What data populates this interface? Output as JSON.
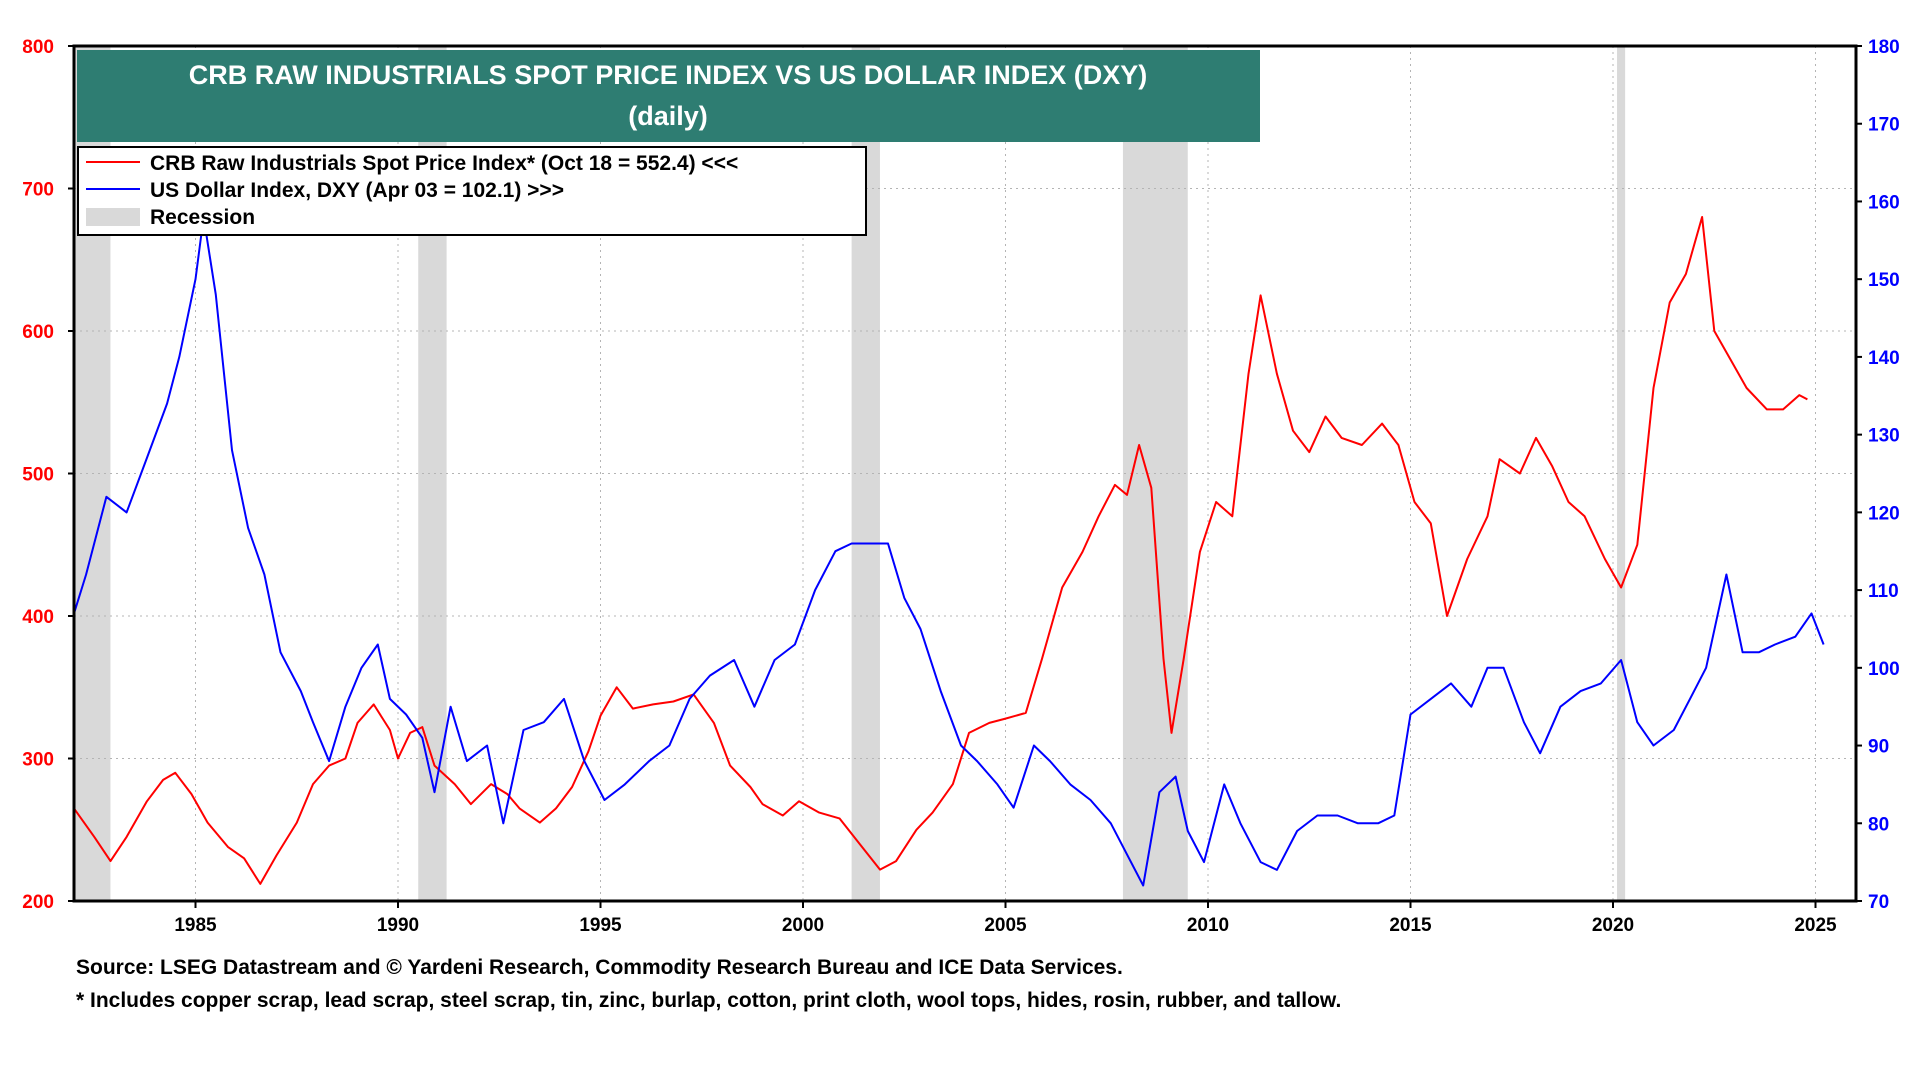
{
  "chart_data": {
    "type": "line",
    "title": "CRB RAW INDUSTRIALS SPOT PRICE INDEX VS US DOLLAR INDEX (DXY)",
    "subtitle": "(daily)",
    "x_range": [
      1982.0,
      2026.0
    ],
    "x_ticks": [
      "1985",
      "1990",
      "1995",
      "2000",
      "2005",
      "2010",
      "2015",
      "2020",
      "2025"
    ],
    "y_left": {
      "range": [
        200,
        800
      ],
      "ticks": [
        "800",
        "700",
        "600",
        "500",
        "400",
        "300",
        "200"
      ],
      "color": "#ff0000"
    },
    "y_right": {
      "range": [
        70,
        180
      ],
      "ticks": [
        "180",
        "170",
        "160",
        "150",
        "140",
        "130",
        "120",
        "110",
        "100",
        "90",
        "80",
        "70"
      ],
      "color": "#0000ff"
    },
    "grid": true,
    "legend": {
      "placement": "top-left",
      "entries": [
        {
          "label": "CRB Raw Industrials Spot Price Index* (Oct 18 = 552.4) <<<",
          "color": "#ff0000",
          "kind": "line"
        },
        {
          "label": "US Dollar Index, DXY (Apr 03 = 102.1) >>>",
          "color": "#0000ff",
          "kind": "line"
        },
        {
          "label": "Recession",
          "color": "#d9d9d9",
          "kind": "box"
        }
      ]
    },
    "recessions": [
      [
        1982.0,
        1982.9
      ],
      [
        1990.5,
        1991.2
      ],
      [
        2001.2,
        2001.9
      ],
      [
        2007.9,
        2009.5
      ],
      [
        2020.1,
        2020.3
      ]
    ],
    "series": [
      {
        "name": "CRB Raw Industrials Spot Price Index",
        "axis": "left",
        "color": "#ff0000",
        "points": [
          [
            1982.0,
            265
          ],
          [
            1982.5,
            245
          ],
          [
            1982.9,
            228
          ],
          [
            1983.3,
            245
          ],
          [
            1983.8,
            270
          ],
          [
            1984.2,
            285
          ],
          [
            1984.5,
            290
          ],
          [
            1984.9,
            275
          ],
          [
            1985.3,
            255
          ],
          [
            1985.8,
            238
          ],
          [
            1986.2,
            230
          ],
          [
            1986.6,
            212
          ],
          [
            1987.0,
            232
          ],
          [
            1987.5,
            255
          ],
          [
            1987.9,
            282
          ],
          [
            1988.3,
            295
          ],
          [
            1988.7,
            300
          ],
          [
            1989.0,
            325
          ],
          [
            1989.4,
            338
          ],
          [
            1989.8,
            320
          ],
          [
            1990.0,
            300
          ],
          [
            1990.3,
            318
          ],
          [
            1990.6,
            322
          ],
          [
            1990.9,
            295
          ],
          [
            1991.4,
            282
          ],
          [
            1991.8,
            268
          ],
          [
            1992.3,
            282
          ],
          [
            1992.7,
            275
          ],
          [
            1993.0,
            265
          ],
          [
            1993.5,
            255
          ],
          [
            1993.9,
            265
          ],
          [
            1994.3,
            280
          ],
          [
            1994.7,
            305
          ],
          [
            1995.0,
            330
          ],
          [
            1995.4,
            350
          ],
          [
            1995.8,
            335
          ],
          [
            1996.3,
            338
          ],
          [
            1996.8,
            340
          ],
          [
            1997.3,
            345
          ],
          [
            1997.8,
            325
          ],
          [
            1998.2,
            295
          ],
          [
            1998.7,
            280
          ],
          [
            1999.0,
            268
          ],
          [
            1999.5,
            260
          ],
          [
            1999.9,
            270
          ],
          [
            2000.4,
            262
          ],
          [
            2000.9,
            258
          ],
          [
            2001.4,
            240
          ],
          [
            2001.9,
            222
          ],
          [
            2002.3,
            228
          ],
          [
            2002.8,
            250
          ],
          [
            2003.2,
            262
          ],
          [
            2003.7,
            282
          ],
          [
            2004.1,
            318
          ],
          [
            2004.6,
            325
          ],
          [
            2005.0,
            328
          ],
          [
            2005.5,
            332
          ],
          [
            2005.9,
            370
          ],
          [
            2006.4,
            420
          ],
          [
            2006.9,
            445
          ],
          [
            2007.3,
            470
          ],
          [
            2007.7,
            492
          ],
          [
            2008.0,
            485
          ],
          [
            2008.3,
            520
          ],
          [
            2008.6,
            490
          ],
          [
            2008.9,
            370
          ],
          [
            2009.1,
            318
          ],
          [
            2009.4,
            370
          ],
          [
            2009.8,
            445
          ],
          [
            2010.2,
            480
          ],
          [
            2010.6,
            470
          ],
          [
            2011.0,
            570
          ],
          [
            2011.3,
            625
          ],
          [
            2011.7,
            570
          ],
          [
            2012.1,
            530
          ],
          [
            2012.5,
            515
          ],
          [
            2012.9,
            540
          ],
          [
            2013.3,
            525
          ],
          [
            2013.8,
            520
          ],
          [
            2014.3,
            535
          ],
          [
            2014.7,
            520
          ],
          [
            2015.1,
            480
          ],
          [
            2015.5,
            465
          ],
          [
            2015.9,
            400
          ],
          [
            2016.4,
            440
          ],
          [
            2016.9,
            470
          ],
          [
            2017.2,
            510
          ],
          [
            2017.7,
            500
          ],
          [
            2018.1,
            525
          ],
          [
            2018.5,
            505
          ],
          [
            2018.9,
            480
          ],
          [
            2019.3,
            470
          ],
          [
            2019.8,
            440
          ],
          [
            2020.2,
            420
          ],
          [
            2020.6,
            450
          ],
          [
            2021.0,
            560
          ],
          [
            2021.4,
            620
          ],
          [
            2021.8,
            640
          ],
          [
            2022.2,
            680
          ],
          [
            2022.5,
            600
          ],
          [
            2022.9,
            580
          ],
          [
            2023.3,
            560
          ],
          [
            2023.8,
            545
          ],
          [
            2024.2,
            545
          ],
          [
            2024.6,
            555
          ],
          [
            2024.8,
            552
          ]
        ]
      },
      {
        "name": "US Dollar Index, DXY",
        "axis": "right",
        "color": "#0000ff",
        "points": [
          [
            1982.0,
            107
          ],
          [
            1982.3,
            112
          ],
          [
            1982.8,
            122
          ],
          [
            1983.3,
            120
          ],
          [
            1983.8,
            127
          ],
          [
            1984.3,
            134
          ],
          [
            1984.6,
            140
          ],
          [
            1985.0,
            150
          ],
          [
            1985.2,
            158
          ],
          [
            1985.5,
            148
          ],
          [
            1985.9,
            128
          ],
          [
            1986.3,
            118
          ],
          [
            1986.7,
            112
          ],
          [
            1987.1,
            102
          ],
          [
            1987.6,
            97
          ],
          [
            1987.9,
            93
          ],
          [
            1988.3,
            88
          ],
          [
            1988.7,
            95
          ],
          [
            1989.1,
            100
          ],
          [
            1989.5,
            103
          ],
          [
            1989.8,
            96
          ],
          [
            1990.2,
            94
          ],
          [
            1990.6,
            91
          ],
          [
            1990.9,
            84
          ],
          [
            1991.3,
            95
          ],
          [
            1991.7,
            88
          ],
          [
            1992.2,
            90
          ],
          [
            1992.6,
            80
          ],
          [
            1993.1,
            92
          ],
          [
            1993.6,
            93
          ],
          [
            1994.1,
            96
          ],
          [
            1994.6,
            88
          ],
          [
            1995.1,
            83
          ],
          [
            1995.6,
            85
          ],
          [
            1996.2,
            88
          ],
          [
            1996.7,
            90
          ],
          [
            1997.2,
            96
          ],
          [
            1997.7,
            99
          ],
          [
            1998.3,
            101
          ],
          [
            1998.8,
            95
          ],
          [
            1999.3,
            101
          ],
          [
            1999.8,
            103
          ],
          [
            2000.3,
            110
          ],
          [
            2000.8,
            115
          ],
          [
            2001.2,
            116
          ],
          [
            2001.7,
            116
          ],
          [
            2002.1,
            116
          ],
          [
            2002.5,
            109
          ],
          [
            2002.9,
            105
          ],
          [
            2003.4,
            97
          ],
          [
            2003.9,
            90
          ],
          [
            2004.3,
            88
          ],
          [
            2004.8,
            85
          ],
          [
            2005.2,
            82
          ],
          [
            2005.7,
            90
          ],
          [
            2006.1,
            88
          ],
          [
            2006.6,
            85
          ],
          [
            2007.1,
            83
          ],
          [
            2007.6,
            80
          ],
          [
            2008.0,
            76
          ],
          [
            2008.4,
            72
          ],
          [
            2008.8,
            84
          ],
          [
            2009.2,
            86
          ],
          [
            2009.5,
            79
          ],
          [
            2009.9,
            75
          ],
          [
            2010.4,
            85
          ],
          [
            2010.8,
            80
          ],
          [
            2011.3,
            75
          ],
          [
            2011.7,
            74
          ],
          [
            2012.2,
            79
          ],
          [
            2012.7,
            81
          ],
          [
            2013.2,
            81
          ],
          [
            2013.7,
            80
          ],
          [
            2014.2,
            80
          ],
          [
            2014.6,
            81
          ],
          [
            2015.0,
            94
          ],
          [
            2015.5,
            96
          ],
          [
            2016.0,
            98
          ],
          [
            2016.5,
            95
          ],
          [
            2016.9,
            100
          ],
          [
            2017.3,
            100
          ],
          [
            2017.8,
            93
          ],
          [
            2018.2,
            89
          ],
          [
            2018.7,
            95
          ],
          [
            2019.2,
            97
          ],
          [
            2019.7,
            98
          ],
          [
            2020.2,
            101
          ],
          [
            2020.6,
            93
          ],
          [
            2021.0,
            90
          ],
          [
            2021.5,
            92
          ],
          [
            2021.9,
            96
          ],
          [
            2022.3,
            100
          ],
          [
            2022.8,
            112
          ],
          [
            2023.2,
            102
          ],
          [
            2023.6,
            102
          ],
          [
            2024.0,
            103
          ],
          [
            2024.5,
            104
          ],
          [
            2024.9,
            107
          ],
          [
            2025.2,
            103
          ]
        ]
      }
    ]
  },
  "footer": {
    "source": "Source: LSEG Datastream and © Yardeni Research, Commodity Research Bureau and ICE Data Services.",
    "note": "* Includes copper scrap, lead scrap, steel scrap, tin, zinc, burlap, cotton, print cloth, wool tops, hides, rosin, rubber, and tallow."
  }
}
